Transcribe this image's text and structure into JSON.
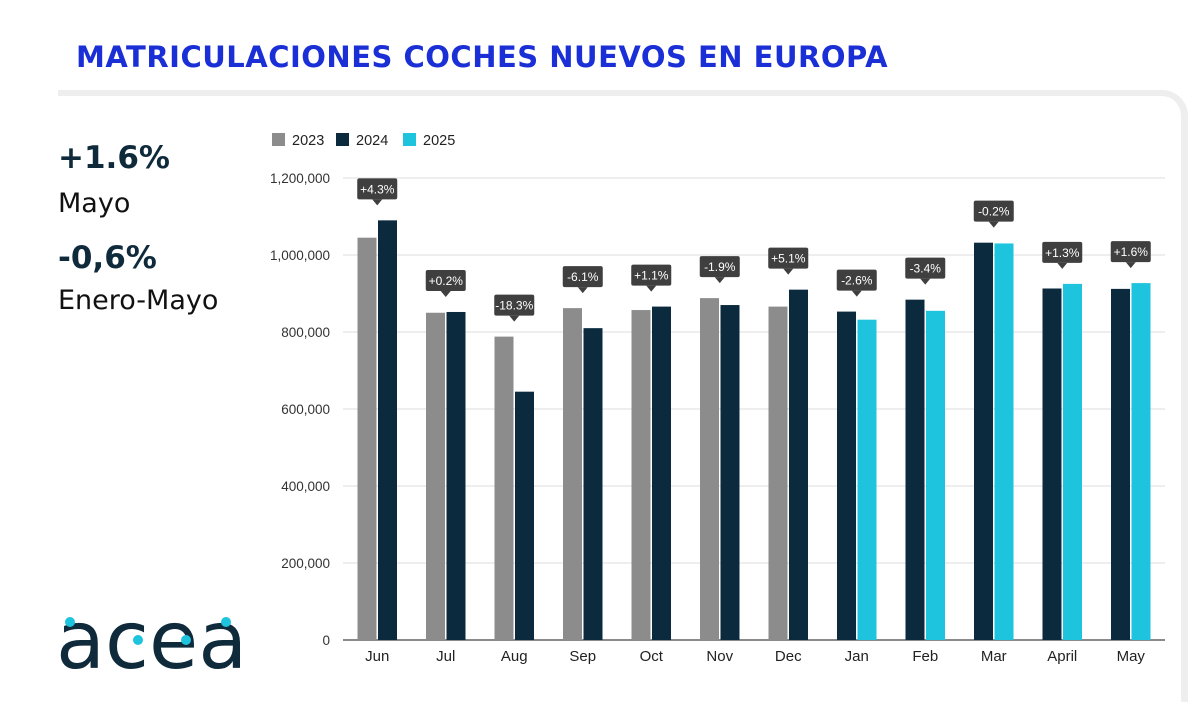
{
  "title": "MATRICULACIONES COCHES NUEVOS EN EUROPA",
  "kpis": [
    {
      "value": "+1.6%",
      "label": "Mayo"
    },
    {
      "value": "-0,6%",
      "label": "Enero-Mayo"
    }
  ],
  "logo": {
    "text": "acea"
  },
  "colors": {
    "title": "#1a2fd6",
    "y2023": "#8c8c8c",
    "y2024": "#0b2a3e",
    "y2025": "#1ec3dd",
    "label_bg": "#3f3f3f",
    "logo": "#0e2a3b",
    "logo_dot": "#1ec3dd"
  },
  "chart_data": {
    "type": "bar",
    "title": "",
    "xlabel": "",
    "ylabel": "",
    "ylim": [
      0,
      1200000
    ],
    "yticks": [
      0,
      200000,
      400000,
      600000,
      800000,
      1000000,
      1200000
    ],
    "ytick_labels": [
      "0",
      "200,000",
      "400,000",
      "600,000",
      "800,000",
      "1,000,000",
      "1,200,000"
    ],
    "grid": true,
    "legend_position": "top-left",
    "categories": [
      "Jun",
      "Jul",
      "Aug",
      "Sep",
      "Oct",
      "Nov",
      "Dec",
      "Jan",
      "Feb",
      "Mar",
      "April",
      "May"
    ],
    "series": [
      {
        "name": "2023",
        "values": [
          1045000,
          850000,
          788000,
          862000,
          857000,
          888000,
          866000,
          null,
          null,
          null,
          null,
          null
        ]
      },
      {
        "name": "2024",
        "values": [
          1090000,
          852000,
          645000,
          810000,
          866000,
          870000,
          910000,
          853000,
          884000,
          1032000,
          913000,
          912000
        ]
      },
      {
        "name": "2025",
        "values": [
          null,
          null,
          null,
          null,
          null,
          null,
          null,
          832000,
          855000,
          1030000,
          925000,
          927000
        ]
      }
    ],
    "annotations": [
      "+4.3%",
      "+0.2%",
      "-18.3%",
      "-6.1%",
      "+1.1%",
      "-1.9%",
      "+5.1%",
      "-2.6%",
      "-3.4%",
      "-0.2%",
      "+1.3%",
      "+1.6%"
    ]
  }
}
